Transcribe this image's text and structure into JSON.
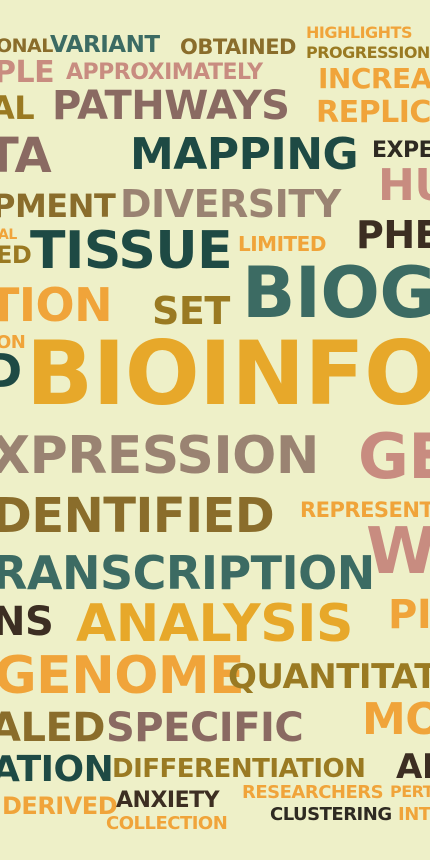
{
  "palette": {
    "background": "#eef0c8",
    "dark_green": "#1e4a44",
    "teal": "#3c6b63",
    "orange": "#f0a43a",
    "gold": "#e7a82a",
    "brown": "#8a6d2b",
    "olive_brown": "#9a7a22",
    "mauve": "#8a6a62",
    "pink_brown": "#c88c80",
    "taupe": "#9a8372",
    "dark_brown": "#3c2e22",
    "charcoal": "#2e2a22"
  },
  "words": [
    {
      "id": "w1",
      "text": "ONAL"
    },
    {
      "id": "w2",
      "text": "VARIANT"
    },
    {
      "id": "w3",
      "text": "OBTAINED"
    },
    {
      "id": "w4",
      "text": "HIGHLIGHTS"
    },
    {
      "id": "w5",
      "text": "PROGRESSION"
    },
    {
      "id": "w6",
      "text": "PLE"
    },
    {
      "id": "w7",
      "text": "APPROXIMATELY"
    },
    {
      "id": "w8",
      "text": "INCREA"
    },
    {
      "id": "w9",
      "text": "AL"
    },
    {
      "id": "w10",
      "text": "PATHWAYS"
    },
    {
      "id": "w11",
      "text": "REPLIC"
    },
    {
      "id": "w12",
      "text": "TA"
    },
    {
      "id": "w13",
      "text": "MAPPING"
    },
    {
      "id": "w14",
      "text": "EXPE"
    },
    {
      "id": "w15",
      "text": "HU"
    },
    {
      "id": "w16",
      "text": "PMENT"
    },
    {
      "id": "w17",
      "text": "DIVERSITY"
    },
    {
      "id": "w18",
      "text": "AL"
    },
    {
      "id": "w19",
      "text": "ED"
    },
    {
      "id": "w20",
      "text": "TISSUE"
    },
    {
      "id": "w21",
      "text": "LIMITED"
    },
    {
      "id": "w22",
      "text": "PHE"
    },
    {
      "id": "w23",
      "text": "TION"
    },
    {
      "id": "w24",
      "text": "SET"
    },
    {
      "id": "w25",
      "text": "BIOG"
    },
    {
      "id": "w26",
      "text": "ON"
    },
    {
      "id": "w27",
      "text": "D"
    },
    {
      "id": "w28",
      "text": "BIOINFO"
    },
    {
      "id": "w29",
      "text": "XPRESSION"
    },
    {
      "id": "w30",
      "text": "GE"
    },
    {
      "id": "w31",
      "text": "DENTIFIED"
    },
    {
      "id": "w32",
      "text": "REPRESENT"
    },
    {
      "id": "w33",
      "text": "W"
    },
    {
      "id": "w34",
      "text": "RANSCRIPTION"
    },
    {
      "id": "w35",
      "text": "NS"
    },
    {
      "id": "w36",
      "text": "ANALYSIS"
    },
    {
      "id": "w37",
      "text": "PI"
    },
    {
      "id": "w38",
      "text": "GENOME"
    },
    {
      "id": "w39",
      "text": "QUANTITAT"
    },
    {
      "id": "w40",
      "text": "ALED"
    },
    {
      "id": "w41",
      "text": "SPECIFIC"
    },
    {
      "id": "w42",
      "text": "MO"
    },
    {
      "id": "w43",
      "text": "ATION"
    },
    {
      "id": "w44",
      "text": "DIFFERENTIATION"
    },
    {
      "id": "w45",
      "text": "AN"
    },
    {
      "id": "w46",
      "text": "DERIVED"
    },
    {
      "id": "w47",
      "text": "ANXIETY"
    },
    {
      "id": "w48",
      "text": "RESEARCHERS"
    },
    {
      "id": "w49",
      "text": "PERT"
    },
    {
      "id": "w50",
      "text": "COLLECTION"
    },
    {
      "id": "w51",
      "text": "CLUSTERING"
    },
    {
      "id": "w52",
      "text": "INT"
    }
  ]
}
